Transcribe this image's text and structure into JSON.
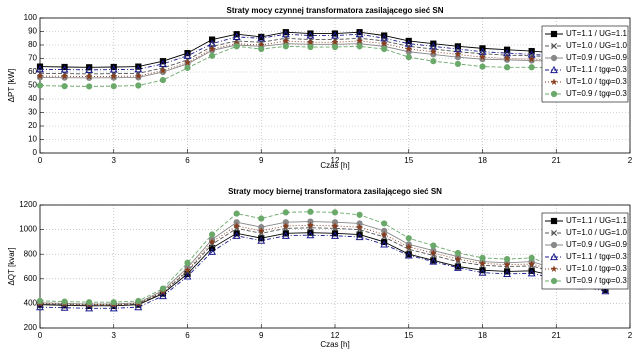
{
  "chart_data": [
    {
      "type": "line",
      "title": "Straty mocy czynnej transformatora zasilającego sieć SN",
      "xlabel": "Czas [h]",
      "ylabel": "ΔPT [kW]",
      "x": [
        0,
        1,
        2,
        3,
        4,
        5,
        6,
        7,
        8,
        9,
        10,
        11,
        12,
        13,
        14,
        15,
        16,
        17,
        18,
        19,
        20,
        21,
        22,
        23
      ],
      "xlim": [
        0,
        24
      ],
      "xticks": [
        0,
        3,
        6,
        9,
        12,
        15,
        18,
        21,
        {
          "value": 24,
          "label": "2"
        }
      ],
      "ylim": [
        0,
        100
      ],
      "yticks": [
        0,
        10,
        20,
        30,
        40,
        50,
        60,
        70,
        80,
        90,
        100
      ],
      "grid": true,
      "legend": "upper right",
      "series": [
        {
          "name": "UT=1.1 / UG=1.1",
          "color": "#000000",
          "marker": "square",
          "dash": "solid",
          "values": [
            64,
            63.7,
            63.5,
            63.7,
            64,
            68,
            74,
            84,
            88,
            86,
            89.5,
            88.5,
            88.5,
            89.5,
            87,
            83,
            81,
            79,
            77.5,
            76.5,
            75.5,
            74,
            72,
            71
          ]
        },
        {
          "name": "UT=1.0 / UG=1.0",
          "color": "#555555",
          "marker": "x",
          "dash": "dashed",
          "values": [
            59,
            58.8,
            58.6,
            58.8,
            59,
            63,
            69,
            79,
            83,
            82,
            85,
            84,
            84,
            85,
            83,
            79,
            77,
            75,
            73.5,
            72.5,
            72,
            71,
            69,
            68
          ]
        },
        {
          "name": "UT=0.9 / UG=0.9",
          "color": "#888888",
          "marker": "circle",
          "dash": "solid",
          "values": [
            56,
            55.8,
            55.6,
            55.8,
            56,
            60,
            66,
            76,
            80,
            79,
            81,
            80.5,
            80.5,
            81,
            79,
            75,
            73,
            71,
            69.5,
            69,
            68.5,
            68,
            66,
            65
          ]
        },
        {
          "name": "UT=1.1 / tgφ=0.3",
          "color": "#1a1a8c",
          "marker": "triangle",
          "dash": "dashdot",
          "values": [
            62,
            61.8,
            61.6,
            61.8,
            62,
            66,
            72,
            81,
            86,
            85,
            88,
            87,
            87,
            88,
            85,
            81,
            79,
            77,
            75,
            74,
            73,
            72,
            70,
            69
          ]
        },
        {
          "name": "UT=1.0 / tgφ=0.3",
          "color": "#8b3a1a",
          "marker": "star",
          "dash": "dotted",
          "values": [
            57,
            56.8,
            56.6,
            56.8,
            57,
            61,
            67,
            77,
            81,
            80,
            83,
            82,
            82,
            83,
            81,
            77,
            75,
            73,
            71,
            70,
            69.5,
            69,
            67,
            66
          ]
        },
        {
          "name": "UT=0.9 / tgφ=0.3",
          "color": "#6aa96a",
          "marker": "circle",
          "dash": "dashed",
          "values": [
            50,
            49.5,
            49.3,
            49.5,
            50,
            54,
            63,
            72,
            79,
            77,
            79,
            78.5,
            78.5,
            79,
            77,
            71,
            68,
            66,
            64,
            63.5,
            63.5,
            63,
            58,
            56
          ]
        }
      ]
    },
    {
      "type": "line",
      "title": "Straty mocy biernej transformatora zasilającego sieć SN",
      "xlabel": "Czas [h]",
      "ylabel": "ΔQT [kvar]",
      "x": [
        0,
        1,
        2,
        3,
        4,
        5,
        6,
        7,
        8,
        9,
        10,
        11,
        12,
        13,
        14,
        15,
        16,
        17,
        18,
        19,
        20,
        21,
        22,
        23
      ],
      "xlim": [
        0,
        24
      ],
      "xticks": [
        0,
        3,
        6,
        9,
        12,
        15,
        18,
        21,
        {
          "value": 24,
          "label": "2"
        }
      ],
      "ylim": [
        200,
        1200
      ],
      "yticks": [
        200,
        400,
        600,
        800,
        1000,
        1200
      ],
      "grid": true,
      "legend": "upper right",
      "series": [
        {
          "name": "UT=1.1 / UG=1.1",
          "color": "#000000",
          "marker": "square",
          "dash": "solid",
          "values": [
            390,
            385,
            380,
            380,
            390,
            480,
            640,
            850,
            970,
            930,
            970,
            975,
            970,
            960,
            900,
            800,
            750,
            700,
            670,
            660,
            665,
            620,
            550,
            510
          ]
        },
        {
          "name": "UT=1.0 / UG=1.0",
          "color": "#555555",
          "marker": "x",
          "dash": "dashed",
          "values": [
            395,
            390,
            385,
            385,
            395,
            490,
            660,
            880,
            1010,
            970,
            1010,
            1015,
            1010,
            1000,
            940,
            840,
            790,
            740,
            710,
            700,
            705,
            650,
            570,
            530
          ]
        },
        {
          "name": "UT=0.9 / UG=0.9",
          "color": "#888888",
          "marker": "circle",
          "dash": "solid",
          "values": [
            405,
            400,
            395,
            395,
            405,
            505,
            690,
            920,
            1060,
            1020,
            1060,
            1065,
            1060,
            1050,
            990,
            880,
            830,
            780,
            740,
            730,
            740,
            680,
            580,
            540
          ]
        },
        {
          "name": "UT=1.1 / tgφ=0.3",
          "color": "#1a1a8c",
          "marker": "triangle",
          "dash": "dashdot",
          "values": [
            370,
            365,
            360,
            360,
            370,
            460,
            620,
            820,
            950,
            910,
            950,
            955,
            950,
            940,
            880,
            790,
            740,
            690,
            650,
            640,
            645,
            600,
            540,
            500
          ]
        },
        {
          "name": "UT=1.0 / tgφ=0.3",
          "color": "#8b3a1a",
          "marker": "star",
          "dash": "dotted",
          "values": [
            400,
            395,
            390,
            390,
            400,
            495,
            670,
            900,
            1030,
            990,
            1030,
            1035,
            1030,
            1020,
            960,
            860,
            810,
            760,
            725,
            715,
            720,
            665,
            575,
            535
          ]
        },
        {
          "name": "UT=0.9 / tgφ=0.3",
          "color": "#6aa96a",
          "marker": "circle",
          "dash": "dashed",
          "values": [
            420,
            415,
            410,
            410,
            420,
            520,
            730,
            960,
            1130,
            1090,
            1140,
            1145,
            1140,
            1120,
            1050,
            930,
            870,
            810,
            770,
            760,
            770,
            700,
            580,
            550
          ]
        }
      ]
    }
  ]
}
